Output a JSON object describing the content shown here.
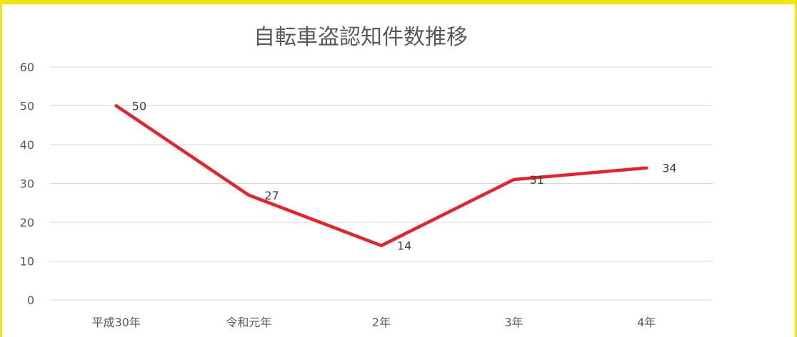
{
  "chart_data": {
    "type": "line",
    "title": "自転車盗認知件数推移",
    "categories": [
      "平成30年",
      "令和元年",
      "2年",
      "3年",
      "4年"
    ],
    "series": [
      {
        "values": [
          50,
          27,
          14,
          31,
          34
        ],
        "color": "#e8212b"
      }
    ],
    "data_labels": [
      "50",
      "27",
      "14",
      "31",
      "34"
    ],
    "y_ticks": [
      "0",
      "10",
      "20",
      "30",
      "40",
      "50",
      "60"
    ],
    "ylim": [
      0,
      60
    ],
    "grid": true,
    "legend": "none"
  },
  "colors": {
    "frame": "#f2e40f",
    "grid": "#d9d9d9",
    "line": "#e8212b",
    "text": "#595959"
  }
}
